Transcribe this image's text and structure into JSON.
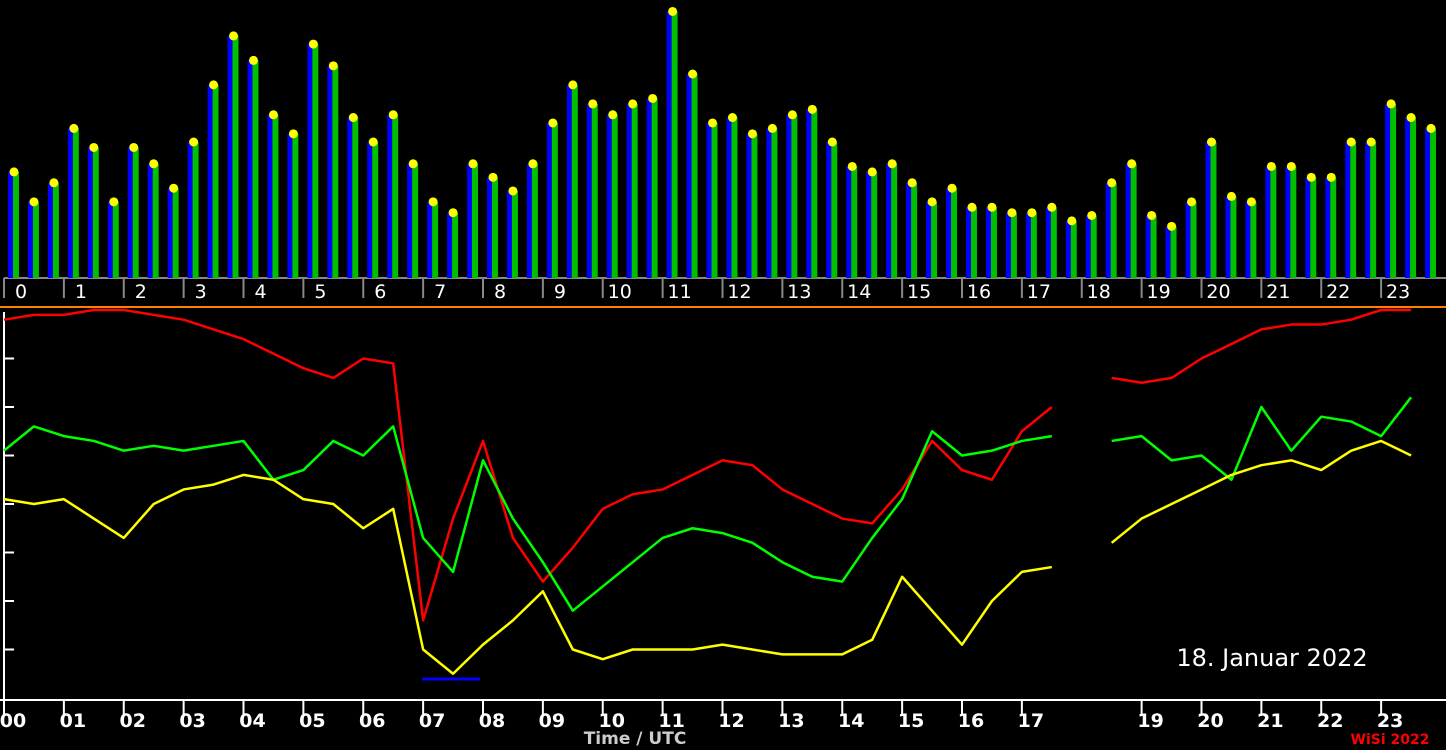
{
  "chart_data": [
    {
      "type": "bar",
      "color": "#00c000",
      "edge_color": "#0000ff",
      "marker_color": "#ffff00",
      "xlim": [
        0,
        24
      ],
      "ylim": [
        0,
        100
      ],
      "xticks": [
        0,
        1,
        2,
        3,
        4,
        5,
        6,
        7,
        8,
        9,
        10,
        11,
        12,
        13,
        14,
        15,
        16,
        17,
        18,
        19,
        20,
        21,
        22,
        23
      ],
      "values": [
        39,
        28,
        35,
        55,
        48,
        28,
        48,
        42,
        33,
        50,
        71,
        89,
        80,
        60,
        53,
        86,
        78,
        59,
        50,
        60,
        42,
        28,
        24,
        42,
        37,
        32,
        42,
        57,
        71,
        64,
        60,
        64,
        66,
        98,
        75,
        57,
        59,
        53,
        55,
        60,
        62,
        50,
        41,
        39,
        42,
        35,
        28,
        33,
        26,
        26,
        24,
        24,
        26,
        21,
        23,
        35,
        42,
        23,
        19,
        28,
        50,
        30,
        28,
        41,
        41,
        37,
        37,
        50,
        50,
        64,
        59,
        55
      ]
    },
    {
      "type": "line",
      "xlabel": "Time / UTC",
      "annotation": "18. Januar 2022",
      "credit": "WiSi 2022",
      "xlim": [
        0,
        24
      ],
      "ylim": [
        0,
        8
      ],
      "yticks": [
        1,
        2,
        3,
        4,
        5,
        6,
        7
      ],
      "xticks": [
        {
          "value": 0,
          "label": "00"
        },
        {
          "value": 1,
          "label": "01"
        },
        {
          "value": 2,
          "label": "02"
        },
        {
          "value": 3,
          "label": "03"
        },
        {
          "value": 4,
          "label": "04"
        },
        {
          "value": 5,
          "label": "05"
        },
        {
          "value": 6,
          "label": "06"
        },
        {
          "value": 7,
          "label": "07"
        },
        {
          "value": 8,
          "label": "08"
        },
        {
          "value": 9,
          "label": "09"
        },
        {
          "value": 10,
          "label": "10"
        },
        {
          "value": 11,
          "label": "11"
        },
        {
          "value": 12,
          "label": "12"
        },
        {
          "value": 13,
          "label": "13"
        },
        {
          "value": 14,
          "label": "14"
        },
        {
          "value": 15,
          "label": "15"
        },
        {
          "value": 16,
          "label": "16"
        },
        {
          "value": 17,
          "label": "17"
        },
        {
          "value": 19,
          "label": "19"
        },
        {
          "value": 20,
          "label": "20"
        },
        {
          "value": 21,
          "label": "21"
        },
        {
          "value": 22,
          "label": "22"
        },
        {
          "value": 23,
          "label": "23"
        }
      ],
      "x": [
        0,
        0.5,
        1,
        1.5,
        2,
        2.5,
        3,
        3.5,
        4,
        4.5,
        5,
        5.5,
        6,
        6.5,
        7,
        7.5,
        8,
        8.5,
        9,
        9.5,
        10,
        10.5,
        11,
        11.5,
        12,
        12.5,
        13,
        13.5,
        14,
        14.5,
        15,
        15.5,
        16,
        16.5,
        17,
        17.5,
        18,
        18.5,
        19,
        19.5,
        20,
        20.5,
        21,
        21.5,
        22,
        22.5,
        23,
        23.5
      ],
      "series": [
        {
          "color": "#ff0000",
          "values": [
            7.8,
            7.9,
            7.9,
            8.0,
            8.0,
            7.9,
            7.8,
            7.6,
            7.4,
            7.1,
            6.8,
            6.6,
            7.0,
            6.9,
            1.6,
            3.7,
            5.3,
            3.3,
            2.4,
            3.1,
            3.9,
            4.2,
            4.3,
            4.6,
            4.9,
            4.8,
            4.3,
            4.0,
            3.7,
            3.6,
            4.3,
            5.3,
            4.7,
            4.5,
            5.5,
            6.0,
            null,
            6.6,
            6.5,
            6.6,
            7.0,
            7.3,
            7.6,
            7.7,
            7.7,
            7.8,
            8.0,
            8.0
          ]
        },
        {
          "color": "#00ff00",
          "values": [
            5.1,
            5.6,
            5.4,
            5.3,
            5.1,
            5.2,
            5.1,
            5.2,
            5.3,
            4.5,
            4.7,
            5.3,
            5.0,
            5.6,
            3.3,
            2.6,
            4.9,
            3.7,
            2.8,
            1.8,
            2.3,
            2.8,
            3.3,
            3.5,
            3.4,
            3.2,
            2.8,
            2.5,
            2.4,
            3.3,
            4.1,
            5.5,
            5.0,
            5.1,
            5.3,
            5.4,
            null,
            5.3,
            5.4,
            4.9,
            5.0,
            4.5,
            6.0,
            5.1,
            5.8,
            5.7,
            5.4,
            6.2
          ]
        },
        {
          "color": "#ffff00",
          "values": [
            4.1,
            4.0,
            4.1,
            3.7,
            3.3,
            4.0,
            4.3,
            4.4,
            4.6,
            4.5,
            4.1,
            4.0,
            3.5,
            3.9,
            1.0,
            0.5,
            1.1,
            1.6,
            2.2,
            1.0,
            0.8,
            1.0,
            1.0,
            1.0,
            1.1,
            1.0,
            0.9,
            0.9,
            0.9,
            1.2,
            2.5,
            1.8,
            1.1,
            2.0,
            2.6,
            2.7,
            null,
            3.2,
            3.7,
            4.0,
            4.3,
            4.6,
            4.8,
            4.9,
            4.7,
            5.1,
            5.3,
            5.0
          ]
        }
      ]
    }
  ]
}
